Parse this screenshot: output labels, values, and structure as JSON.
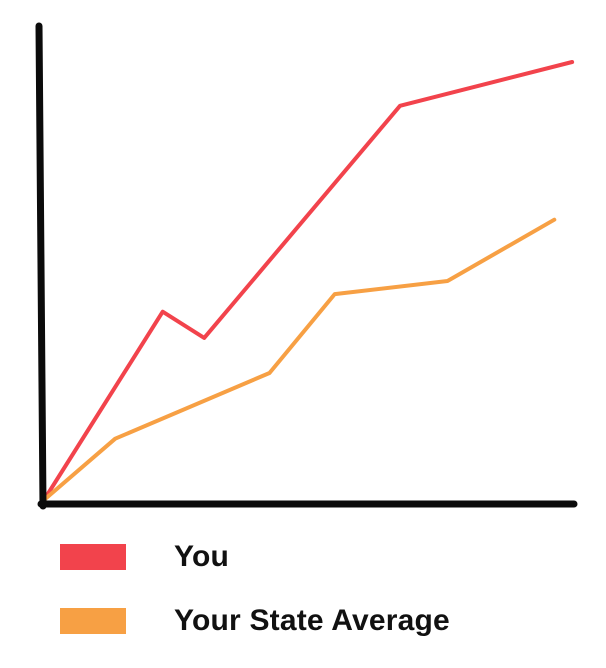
{
  "chart_data": {
    "type": "line",
    "title": "",
    "xlabel": "",
    "ylabel": "",
    "x": [
      0,
      1,
      2,
      3,
      4,
      5,
      6,
      7,
      8
    ],
    "xlim": [
      0,
      9
    ],
    "ylim": [
      0,
      100
    ],
    "grid": false,
    "legend_position": "bottom-left",
    "series": [
      {
        "name": "You",
        "color": "#f2434c",
        "x": [
          0,
          2.0,
          2.7,
          6.0,
          8.9
        ],
        "y": [
          0,
          43,
          37,
          90,
          100
        ]
      },
      {
        "name": "Your State Average",
        "color": "#f7a044",
        "x": [
          0,
          1.2,
          3.8,
          4.9,
          6.8,
          8.6
        ],
        "y": [
          0,
          14,
          29,
          47,
          50,
          64
        ]
      }
    ]
  }
}
